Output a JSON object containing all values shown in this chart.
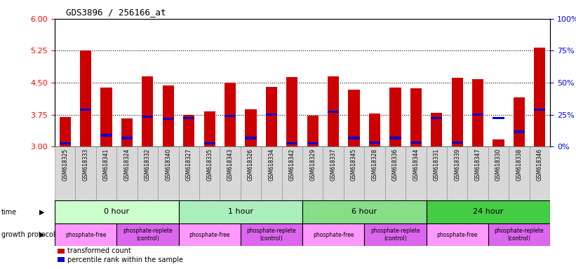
{
  "title": "GDS3896 / 256166_at",
  "samples": [
    "GSM618325",
    "GSM618333",
    "GSM618341",
    "GSM618324",
    "GSM618332",
    "GSM618340",
    "GSM618327",
    "GSM618335",
    "GSM618343",
    "GSM618326",
    "GSM618334",
    "GSM618342",
    "GSM618329",
    "GSM618337",
    "GSM618345",
    "GSM618328",
    "GSM618336",
    "GSM618344",
    "GSM618331",
    "GSM618339",
    "GSM618347",
    "GSM618330",
    "GSM618338",
    "GSM618346"
  ],
  "bar_values": [
    3.7,
    5.25,
    4.38,
    3.67,
    4.65,
    4.44,
    3.74,
    3.82,
    4.5,
    3.87,
    4.41,
    4.64,
    3.73,
    4.65,
    4.33,
    3.77,
    4.38,
    4.37,
    3.8,
    4.62,
    4.58,
    3.17,
    4.15,
    5.32
  ],
  "percentile_values": [
    3.08,
    3.87,
    3.27,
    3.2,
    3.7,
    3.65,
    3.67,
    3.08,
    3.72,
    3.2,
    3.75,
    3.08,
    3.08,
    3.82,
    3.2,
    3.1,
    3.2,
    3.1,
    3.67,
    3.1,
    3.75,
    3.67,
    3.35,
    3.87
  ],
  "bar_bottom": 3.0,
  "ylim_left": [
    3.0,
    6.0
  ],
  "yticks_left": [
    3.0,
    3.75,
    4.5,
    5.25,
    6.0
  ],
  "ylim_right": [
    0,
    100
  ],
  "yticks_right": [
    0,
    25,
    50,
    75,
    100
  ],
  "ytick_labels_right": [
    "0%",
    "25%",
    "50%",
    "75%",
    "100%"
  ],
  "bar_color": "#cc0000",
  "percentile_color": "#0000cc",
  "time_groups": [
    {
      "label": "0 hour",
      "start": 0,
      "end": 6
    },
    {
      "label": "1 hour",
      "start": 6,
      "end": 12
    },
    {
      "label": "6 hour",
      "start": 12,
      "end": 18
    },
    {
      "label": "24 hour",
      "start": 18,
      "end": 24
    }
  ],
  "time_colors": [
    "#ccffcc",
    "#99ee99",
    "#77dd77",
    "#55cc55"
  ],
  "protocol_groups": [
    {
      "label": "phosphate-free",
      "start": 0,
      "end": 3,
      "color": "#ff99ff"
    },
    {
      "label": "phosphate-replete\n(control)",
      "start": 3,
      "end": 6,
      "color": "#dd66ee"
    },
    {
      "label": "phosphate-free",
      "start": 6,
      "end": 9,
      "color": "#ff99ff"
    },
    {
      "label": "phosphate-replete\n(control)",
      "start": 9,
      "end": 12,
      "color": "#dd66ee"
    },
    {
      "label": "phosphate-free",
      "start": 12,
      "end": 15,
      "color": "#ff99ff"
    },
    {
      "label": "phosphate-replete\n(control)",
      "start": 15,
      "end": 18,
      "color": "#dd66ee"
    },
    {
      "label": "phosphate-free",
      "start": 18,
      "end": 21,
      "color": "#ff99ff"
    },
    {
      "label": "phosphate-replete\n(control)",
      "start": 21,
      "end": 24,
      "color": "#dd66ee"
    }
  ],
  "dotted_lines": [
    3.75,
    4.5,
    5.25
  ],
  "legend_items": [
    {
      "label": "transformed count",
      "color": "#cc0000"
    },
    {
      "label": "percentile rank within the sample",
      "color": "#0000cc"
    }
  ]
}
